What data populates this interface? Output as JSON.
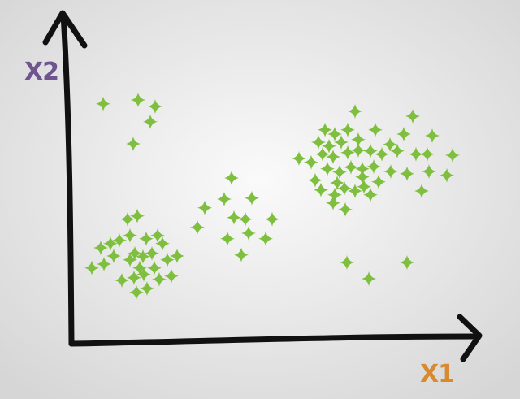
{
  "chart_data": {
    "type": "scatter",
    "xlabel": "X1",
    "ylabel": "X2",
    "xlabel_color": "#d9892e",
    "ylabel_color": "#6f558f",
    "color": "#7fbf3f",
    "xlim": [
      0,
      100
    ],
    "ylim": [
      0,
      100
    ],
    "x": [
      7.8,
      16.4,
      20.6,
      19.4,
      15.2,
      13.8,
      16.2,
      11.8,
      14.4,
      18.4,
      21.2,
      7.2,
      9.6,
      15.6,
      17.6,
      19.8,
      23.6,
      26,
      5,
      8,
      14.4,
      16.8,
      20.4,
      12.4,
      15.4,
      17.8,
      21.6,
      24.6,
      16,
      18.6,
      10.4,
      22.4,
      39.4,
      37.6,
      44.4,
      32.8,
      40,
      42.8,
      49.4,
      31,
      38.4,
      43.6,
      47.8,
      41.8,
      69.8,
      84,
      62.4,
      64.8,
      68,
      74.8,
      81.8,
      88.8,
      60.8,
      63.4,
      66.4,
      70.6,
      78.4,
      61.8,
      56,
      59,
      64.4,
      68,
      70.6,
      73.6,
      76.4,
      80.2,
      84.8,
      87.6,
      93.8,
      63,
      66,
      68.8,
      71.6,
      74.4,
      78.6,
      82.6,
      88,
      92.4,
      61.4,
      64.8,
      67.2,
      69.8,
      72,
      73.6,
      75.6,
      86.2,
      64.4,
      67.4,
      67.8,
      82.6,
      73.2,
      60,
      71.6,
      65.4
    ],
    "y": [
      73.8,
      75,
      73,
      68.3,
      61.5,
      38.3,
      39.3,
      31.8,
      33.3,
      32.3,
      33.3,
      29.5,
      30.8,
      27.8,
      26.8,
      27.8,
      25.8,
      27,
      23.3,
      24.5,
      25.8,
      23.3,
      23.3,
      19.5,
      20.3,
      21.3,
      19.8,
      20.8,
      15.8,
      17,
      27,
      30.8,
      51,
      44.5,
      44.8,
      41.8,
      38.8,
      38.3,
      38.3,
      35.8,
      32.3,
      34,
      32.3,
      27.3,
      71.5,
      70,
      65.8,
      64.5,
      65.8,
      65.8,
      64.5,
      64,
      62,
      60.8,
      62,
      62.8,
      61.3,
      58.3,
      57,
      55.8,
      57.5,
      58.8,
      59.5,
      59.3,
      58.3,
      59.3,
      58.3,
      58.3,
      58,
      53.8,
      52.8,
      54.3,
      53.8,
      54.5,
      53,
      52.3,
      53,
      51.8,
      47.3,
      45.8,
      47.8,
      47,
      48.3,
      45.8,
      49.8,
      47,
      43.3,
      41.3,
      25,
      25,
      20,
      50.3,
      51.3,
      49.5
    ]
  }
}
